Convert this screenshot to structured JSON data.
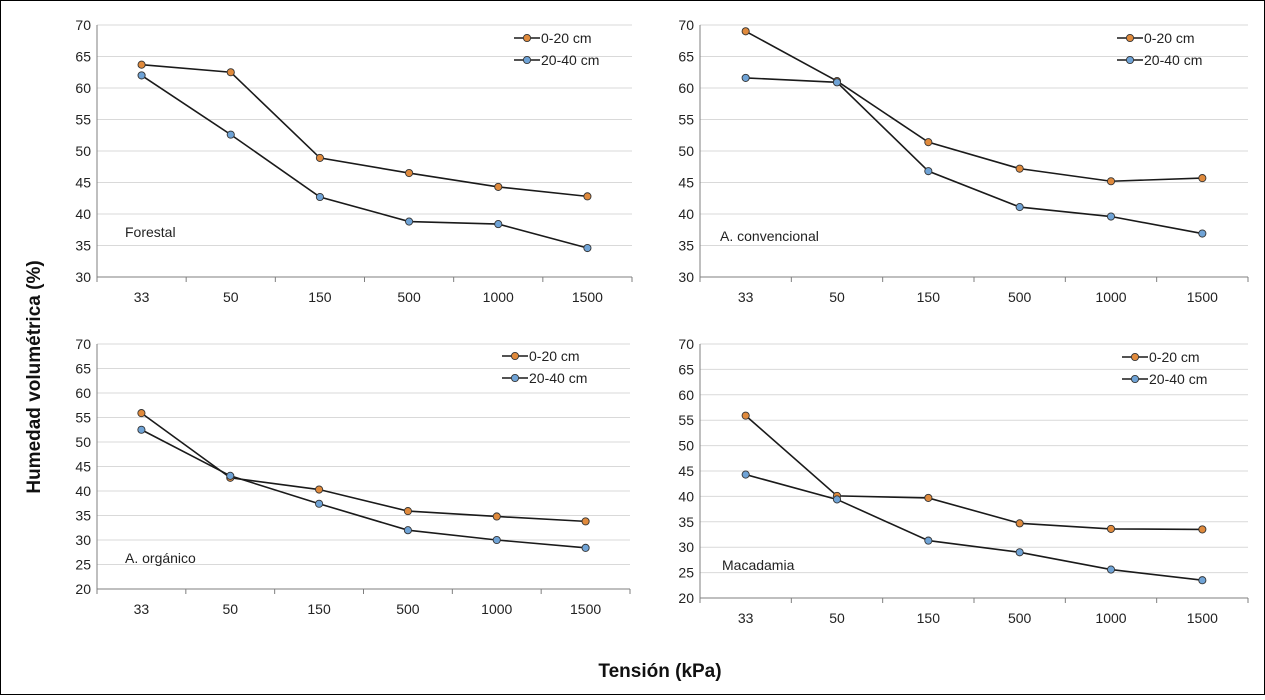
{
  "figure": {
    "ylabel": "Humedad volumétrica (%)",
    "xlabel": "Tensión (kPa)"
  },
  "colors": {
    "series_0_20": "#e08a3c",
    "series_20_40": "#6fa3d6",
    "line": "#1a1a1a",
    "grid": "#d9d9d9",
    "axis": "#7f7f7f"
  },
  "chart_data": [
    {
      "type": "line",
      "label": "Forestal",
      "categories": [
        "33",
        "50",
        "150",
        "500",
        "1000",
        "1500"
      ],
      "ylim": [
        30,
        70
      ],
      "yticks": [
        30,
        35,
        40,
        45,
        50,
        55,
        60,
        65,
        70
      ],
      "grid": true,
      "legend": "top-right",
      "series": [
        {
          "name": "0-20 cm",
          "values": [
            63.7,
            62.5,
            48.9,
            46.5,
            44.3,
            42.8
          ]
        },
        {
          "name": "20-40 cm",
          "values": [
            62.0,
            52.6,
            42.7,
            38.8,
            38.4,
            34.6
          ]
        }
      ]
    },
    {
      "type": "line",
      "label": "A. convencional",
      "categories": [
        "33",
        "50",
        "150",
        "500",
        "1000",
        "1500"
      ],
      "ylim": [
        30,
        70
      ],
      "yticks": [
        30,
        35,
        40,
        45,
        50,
        55,
        60,
        65,
        70
      ],
      "grid": true,
      "legend": "top-right",
      "series": [
        {
          "name": "0-20 cm",
          "values": [
            69.0,
            61.1,
            51.4,
            47.2,
            45.2,
            45.7
          ]
        },
        {
          "name": "20-40 cm",
          "values": [
            61.6,
            60.9,
            46.8,
            41.1,
            39.6,
            36.9
          ]
        }
      ]
    },
    {
      "type": "line",
      "label": "A. orgánico",
      "categories": [
        "33",
        "50",
        "150",
        "500",
        "1000",
        "1500"
      ],
      "ylim": [
        20,
        70
      ],
      "yticks": [
        20,
        25,
        30,
        35,
        40,
        45,
        50,
        55,
        60,
        65,
        70
      ],
      "grid": true,
      "legend": "top-right",
      "series": [
        {
          "name": "0-20 cm",
          "values": [
            55.9,
            42.7,
            40.3,
            35.9,
            34.8,
            33.8
          ]
        },
        {
          "name": "20-40 cm",
          "values": [
            52.5,
            43.1,
            37.4,
            32.0,
            30.0,
            28.4
          ]
        }
      ]
    },
    {
      "type": "line",
      "label": "Macadamia",
      "categories": [
        "33",
        "50",
        "150",
        "500",
        "1000",
        "1500"
      ],
      "ylim": [
        20,
        70
      ],
      "yticks": [
        20,
        25,
        30,
        35,
        40,
        45,
        50,
        55,
        60,
        65,
        70
      ],
      "grid": true,
      "legend": "top-right",
      "series": [
        {
          "name": "0-20 cm",
          "values": [
            55.9,
            40.1,
            39.7,
            34.7,
            33.6,
            33.5
          ]
        },
        {
          "name": "20-40 cm",
          "values": [
            44.3,
            39.4,
            31.3,
            29.0,
            25.6,
            23.5
          ]
        }
      ]
    }
  ]
}
